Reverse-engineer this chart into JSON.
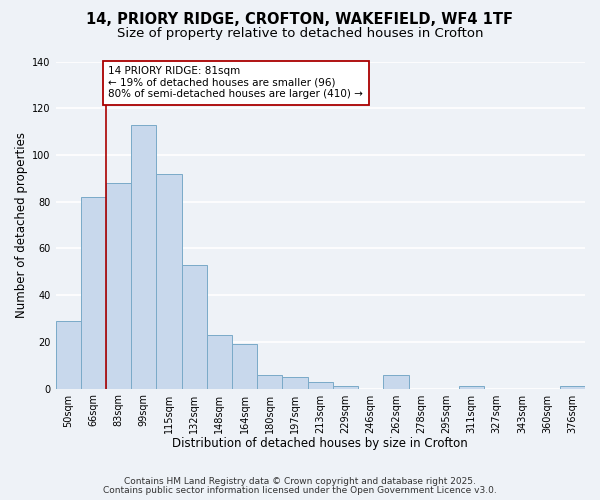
{
  "title_line1": "14, PRIORY RIDGE, CROFTON, WAKEFIELD, WF4 1TF",
  "title_line2": "Size of property relative to detached houses in Crofton",
  "xlabel": "Distribution of detached houses by size in Crofton",
  "ylabel": "Number of detached properties",
  "bar_labels": [
    "50sqm",
    "66sqm",
    "83sqm",
    "99sqm",
    "115sqm",
    "132sqm",
    "148sqm",
    "164sqm",
    "180sqm",
    "197sqm",
    "213sqm",
    "229sqm",
    "246sqm",
    "262sqm",
    "278sqm",
    "295sqm",
    "311sqm",
    "327sqm",
    "343sqm",
    "360sqm",
    "376sqm"
  ],
  "bar_values": [
    29,
    82,
    88,
    113,
    92,
    53,
    23,
    19,
    6,
    5,
    3,
    1,
    0,
    6,
    0,
    0,
    1,
    0,
    0,
    0,
    1
  ],
  "bar_color": "#c8d8ec",
  "bar_edge_color": "#7aaac8",
  "vline_color": "#aa0000",
  "annotation_line1": "14 PRIORY RIDGE: 81sqm",
  "annotation_line2": "← 19% of detached houses are smaller (96)",
  "annotation_line3": "80% of semi-detached houses are larger (410) →",
  "ylim": [
    0,
    140
  ],
  "yticks": [
    0,
    20,
    40,
    60,
    80,
    100,
    120,
    140
  ],
  "footnote1": "Contains HM Land Registry data © Crown copyright and database right 2025.",
  "footnote2": "Contains public sector information licensed under the Open Government Licence v3.0.",
  "background_color": "#eef2f7",
  "grid_color": "#ffffff",
  "title_fontsize": 10.5,
  "subtitle_fontsize": 9.5,
  "axis_label_fontsize": 8.5,
  "tick_fontsize": 7,
  "annotation_fontsize": 7.5,
  "footnote_fontsize": 6.5
}
